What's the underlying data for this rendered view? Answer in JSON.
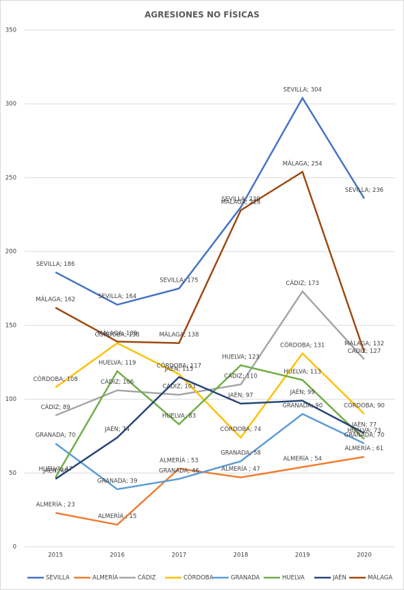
{
  "chart_data": {
    "type": "line",
    "title": "AGRESIONES NO FÍSICAS",
    "categories": [
      "2015",
      "2016",
      "2017",
      "2018",
      "2019",
      "2020"
    ],
    "ylim": [
      0,
      350
    ],
    "yticks": [
      0,
      50,
      100,
      150,
      200,
      250,
      300,
      350
    ],
    "grid": true,
    "legend": "bottom",
    "series": [
      {
        "name": "SEVILLA",
        "color": "#4472c4",
        "values": [
          186,
          164,
          175,
          230,
          304,
          236
        ],
        "value_labels": [
          "SEVILLA; 186",
          "SEVILLA; 164",
          "SEVILLA; 175",
          "SEVILLA; 230",
          "SEVILLA; 304",
          "SEVILLA; 236"
        ]
      },
      {
        "name": "ALMERÍA",
        "color": "#ed7d31",
        "values": [
          23,
          15,
          53,
          47,
          54,
          61
        ],
        "value_labels": [
          "ALMERÍA ; 23",
          "ALMERÍA ; 15",
          "ALMERÍA ; 53",
          "ALMERÍA ; 47",
          "ALMERÍA ; 54",
          "ALMERÍA ; 61"
        ]
      },
      {
        "name": "CÁDIZ",
        "color": "#a5a5a5",
        "values": [
          89,
          106,
          103,
          110,
          173,
          127
        ],
        "value_labels": [
          "CÁDIZ; 89",
          "CÁDIZ; 106",
          "CÁDIZ; 103",
          "CÁDIZ; 110",
          "CÁDIZ; 173",
          "CÁDIZ; 127"
        ]
      },
      {
        "name": "CÓRDOBA",
        "color": "#ffc000",
        "values": [
          108,
          138,
          117,
          74,
          131,
          90
        ],
        "value_labels": [
          "CÓRDOBA; 108",
          "CÓRDOBA; 138",
          "CÓRDOBA; 117",
          "CÓRDOBA; 74",
          "CÓRDOBA; 131",
          "CÓRDOBA; 90"
        ]
      },
      {
        "name": "GRANADA",
        "color": "#5b9bd5",
        "values": [
          70,
          39,
          46,
          58,
          90,
          70
        ],
        "value_labels": [
          "GRANADA; 70",
          "GRANADA; 39",
          "GRANADA; 46",
          "GRANADA; 58",
          "GRANADA; 90",
          "GRANADA; 70"
        ]
      },
      {
        "name": "HUELVA",
        "color": "#70ad47",
        "values": [
          47,
          119,
          83,
          123,
          113,
          73
        ],
        "value_labels": [
          "HUELVA; 47",
          "HUELVA; 119",
          "HUELVA; 83",
          "HUELVA; 123",
          "HUELVA; 113",
          "HUELVA; 73"
        ]
      },
      {
        "name": "JAÉN",
        "color": "#264478",
        "values": [
          46,
          74,
          115,
          97,
          99,
          77
        ],
        "value_labels": [
          "JAÉN; 46",
          "JAÉN; 74",
          "JAÉN; 115",
          "JAÉN; 97",
          "JAÉN; 99",
          "JAÉN; 77"
        ]
      },
      {
        "name": "MÁLAGA",
        "color": "#9e480e",
        "values": [
          162,
          139,
          138,
          228,
          254,
          132
        ],
        "value_labels": [
          "MÁLAGA; 162",
          "MÁLAGA; 139",
          "MÁLAGA; 138",
          "MÁLAGA; 228",
          "MÁLAGA; 254",
          "MÁLAGA; 132"
        ]
      }
    ]
  }
}
